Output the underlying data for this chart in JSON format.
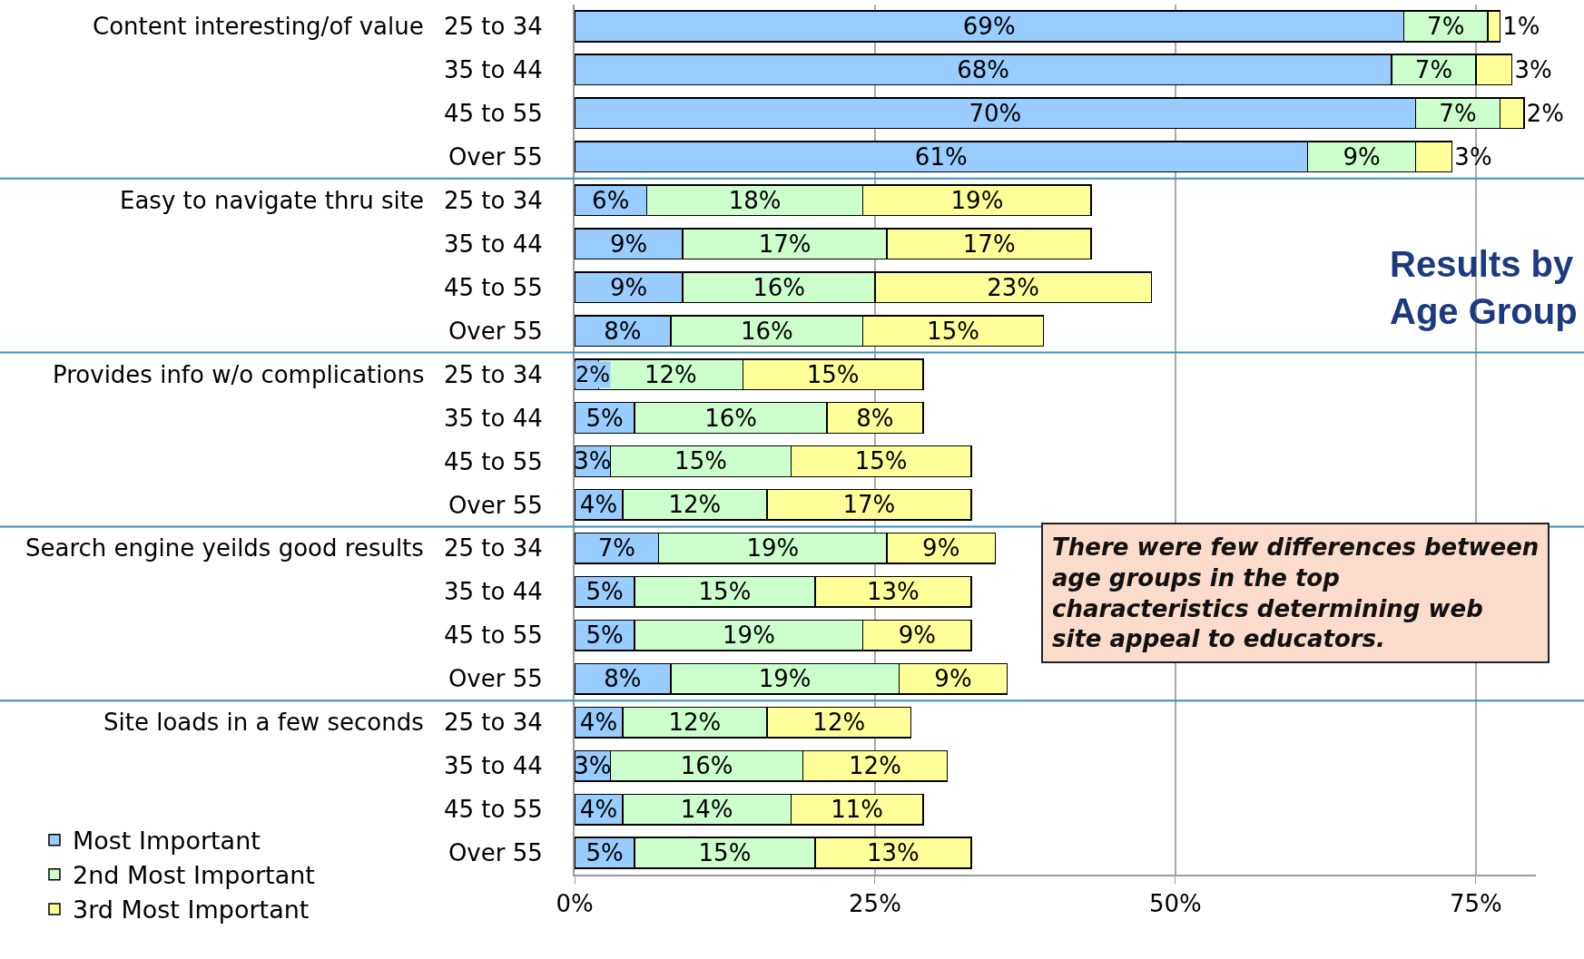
{
  "chart_data": {
    "type": "bar",
    "orientation": "horizontal",
    "stacked": true,
    "categories": [
      "25 to 34",
      "35 to 44",
      "45 to 55",
      "Over 55",
      "25 to 34",
      "35 to 44",
      "45 to 55",
      "Over 55",
      "25 to 34",
      "35 to 44",
      "45 to 55",
      "Over 55",
      "25 to 34",
      "35 to 44",
      "45 to 55",
      "Over 55",
      "25 to 34",
      "35 to 44",
      "45 to 55",
      "Over 55"
    ],
    "series": [
      {
        "name": "Most Important",
        "color": "#99ccff",
        "values": [
          69,
          68,
          70,
          61,
          6,
          9,
          9,
          8,
          2,
          5,
          3,
          4,
          7,
          5,
          5,
          8,
          4,
          3,
          4,
          5
        ],
        "value_labels": [
          "69%",
          "68%",
          "70%",
          "61%",
          "6%",
          "9%",
          "9%",
          "8%",
          "2%",
          "5%",
          "3%",
          "4%",
          "7%",
          "5%",
          "5%",
          "8%",
          "4%",
          "3%",
          "4%",
          "5%"
        ]
      },
      {
        "name": "2nd Most Important",
        "color": "#ccffcc",
        "values": [
          7,
          7,
          7,
          9,
          18,
          17,
          16,
          16,
          12,
          16,
          15,
          12,
          19,
          15,
          19,
          19,
          12,
          16,
          14,
          15
        ],
        "value_labels": [
          "7%",
          "7%",
          "7%",
          "9%",
          "18%",
          "17%",
          "16%",
          "16%",
          "12%",
          "16%",
          "15%",
          "12%",
          "19%",
          "15%",
          "19%",
          "19%",
          "12%",
          "16%",
          "14%",
          "15%"
        ]
      },
      {
        "name": "3rd Most Important",
        "color": "#ffff99",
        "values": [
          1,
          3,
          2,
          3,
          19,
          17,
          23,
          15,
          15,
          8,
          15,
          17,
          9,
          13,
          9,
          9,
          12,
          12,
          11,
          13
        ],
        "value_labels": [
          "1%",
          "3%",
          "2%",
          "3%",
          "19%",
          "17%",
          "23%",
          "15%",
          "15%",
          "8%",
          "15%",
          "17%",
          "9%",
          "13%",
          "9%",
          "9%",
          "12%",
          "12%",
          "11%",
          "13%"
        ]
      }
    ],
    "xlim": [
      0,
      80
    ],
    "xticks": [
      {
        "value": 0,
        "label": "0%"
      },
      {
        "value": 25,
        "label": "25%"
      },
      {
        "value": 50,
        "label": "50%"
      },
      {
        "value": 75,
        "label": "75%"
      }
    ],
    "grid": "x",
    "legend": "bottom left",
    "annotations": [
      "Content interesting/of value",
      "Easy to navigate thru site",
      "Provides info w/o complications",
      "Search engine yeilds good results",
      "Site loads in a few seconds",
      "There were few differences between age groups in the top characteristics determining web site appeal to educators.",
      "Results by Age Group"
    ]
  }
}
